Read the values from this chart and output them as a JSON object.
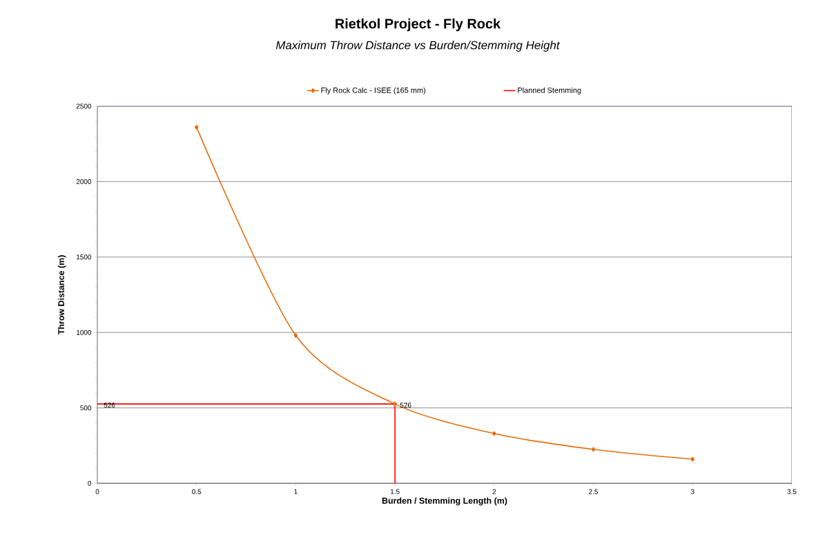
{
  "chart_data": {
    "type": "line",
    "title": "Rietkol Project - Fly Rock",
    "subtitle": "Maximum Throw Distance vs Burden/Stemming Height",
    "xlabel": "Burden  / Stemming Length (m)",
    "ylabel": "Throw Distance (m)",
    "series": [
      {
        "name": "Fly Rock Calc - ISEE (165 mm)",
        "color": "#e46c0a",
        "marker": "diamond",
        "x": [
          0.5,
          1,
          1.5,
          2,
          2.5,
          3
        ],
        "values": [
          2360,
          980,
          526,
          330,
          225,
          160
        ]
      },
      {
        "name": "Planned Stemming",
        "color": "#ff0000",
        "marker": "none",
        "x": [
          0,
          1.5,
          1.5
        ],
        "values": [
          526,
          526,
          0
        ],
        "value_labels": [
          "526",
          "526",
          null
        ]
      }
    ],
    "xlim": [
      0,
      3.5
    ],
    "xticks": [
      0,
      0.5,
      1,
      1.5,
      2,
      2.5,
      3,
      3.5
    ],
    "ylim": [
      0,
      2500
    ],
    "yticks": [
      0,
      500,
      1000,
      1500,
      2000,
      2500
    ],
    "grid": "y",
    "legend": "top",
    "line_style": "solid"
  }
}
